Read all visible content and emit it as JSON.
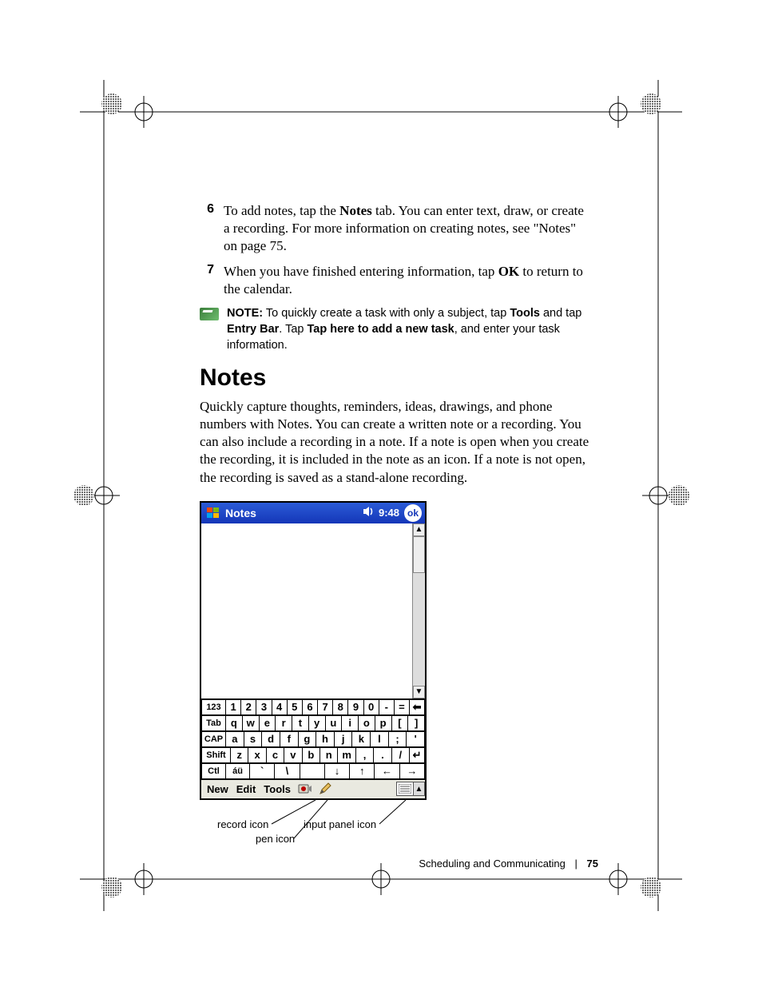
{
  "page": {
    "footer_section": "Scheduling and Communicating",
    "footer_separator": "|",
    "footer_page_number": "75"
  },
  "steps": [
    {
      "num": "6",
      "pre": "To add notes, tap the ",
      "bold1": "Notes",
      "post": " tab. You can enter text, draw, or create a recording. For more information on creating notes, see \"Notes\" on page 75."
    },
    {
      "num": "7",
      "pre": "When you have finished entering information, tap ",
      "bold1": "OK",
      "post": " to return to the calendar."
    }
  ],
  "note": {
    "label": "NOTE:",
    "t1": " To quickly create a task with only a subject, tap ",
    "b1": "Tools",
    "t2": " and tap ",
    "b2": "Entry Bar",
    "t3": ". Tap ",
    "b3": "Tap here to add a new task",
    "t4": ", and enter your task information."
  },
  "section_heading": "Notes",
  "section_body": "Quickly capture thoughts, reminders, ideas, drawings, and phone numbers with Notes. You can create a written note or a recording. You can also include a recording in a note. If a note is open when you create the recording, it is included in the note as an icon. If a note is not open, the recording is saved as a stand-alone recording.",
  "device": {
    "titlebar": {
      "bg_from": "#2b5bd7",
      "bg_to": "#1436b8",
      "app_title": "Notes",
      "time": "9:48",
      "ok": "ok"
    },
    "scrollbar": {
      "up": "▲",
      "down": "▼"
    },
    "keyboard_rows": [
      [
        "123",
        "1",
        "2",
        "3",
        "4",
        "5",
        "6",
        "7",
        "8",
        "9",
        "0",
        "-",
        "=",
        "⬅"
      ],
      [
        "Tab",
        "q",
        "w",
        "e",
        "r",
        "t",
        "y",
        "u",
        "i",
        "o",
        "p",
        "[",
        "]"
      ],
      [
        "CAP",
        "a",
        "s",
        "d",
        "f",
        "g",
        "h",
        "j",
        "k",
        "l",
        ";",
        "'"
      ],
      [
        "Shift",
        "z",
        "x",
        "c",
        "v",
        "b",
        "n",
        "m",
        ",",
        ".",
        "/",
        "↵"
      ],
      [
        "Ctl",
        "áü",
        "`",
        "\\",
        " ",
        "↓",
        "↑",
        "←",
        "→"
      ]
    ],
    "menubar": {
      "items": [
        "New",
        "Edit",
        "Tools"
      ],
      "sip_arrow": "▲"
    }
  },
  "callouts": {
    "record": "record icon",
    "pen": "pen icon",
    "input_panel": "input panel icon"
  },
  "crop_marks": {
    "color": "#000"
  }
}
